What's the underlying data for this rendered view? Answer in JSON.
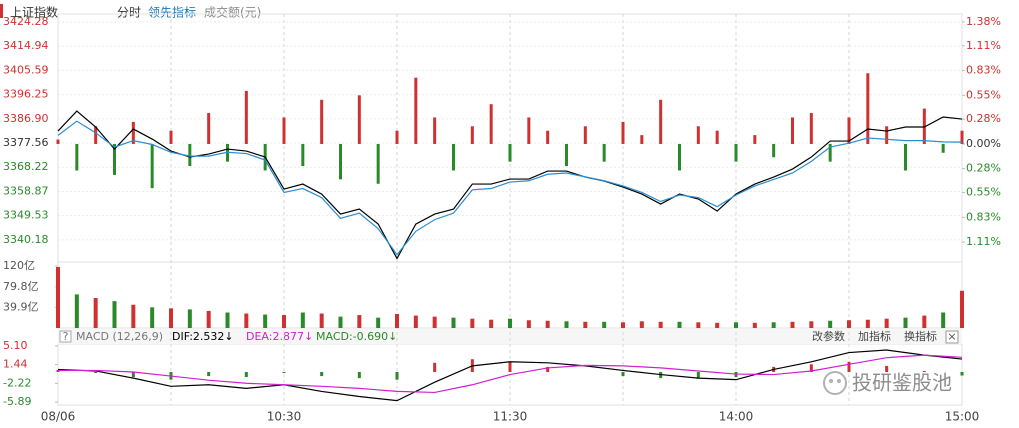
{
  "toolbar": {
    "mode": "分时"
  },
  "watermark": "投研鉴股池",
  "time_axis": {
    "labels": [
      "08/06",
      "10:30",
      "11:30",
      "14:00",
      "15:00"
    ]
  },
  "chart_data": [
    {
      "type": "line",
      "x": [
        "09:30",
        "09:35",
        "09:40",
        "09:45",
        "09:50",
        "09:55",
        "10:00",
        "10:05",
        "10:10",
        "10:15",
        "10:20",
        "10:25",
        "10:30",
        "10:35",
        "10:40",
        "10:45",
        "10:50",
        "10:55",
        "11:00",
        "11:05",
        "11:10",
        "11:15",
        "11:20",
        "11:25",
        "11:30",
        "13:05",
        "13:10",
        "13:15",
        "13:20",
        "13:25",
        "13:30",
        "13:35",
        "13:40",
        "13:45",
        "13:50",
        "13:55",
        "14:00",
        "14:05",
        "14:10",
        "14:15",
        "14:20",
        "14:25",
        "14:30",
        "14:35",
        "14:40",
        "14:45",
        "14:50",
        "14:55",
        "15:00"
      ],
      "ylim": [
        3331.64,
        3427.37
      ],
      "yticks": [
        3424.28,
        3414.94,
        3405.59,
        3396.25,
        {
          "value": 3386.9,
          "label": "3386.90"
        },
        3377.56,
        3368.22,
        3358.87,
        3349.53,
        3340.18
      ],
      "y2lim": [
        -1.335,
        1.47
      ],
      "y2ticks": [
        {
          "value": 1.38,
          "label": "1.38%"
        },
        {
          "value": 1.11,
          "label": "1.11%"
        },
        {
          "value": 0.83,
          "label": "0.83%"
        },
        {
          "value": 0.55,
          "label": "0.55%"
        },
        {
          "value": 0.28,
          "label": "0.28%"
        },
        {
          "value": 0,
          "label": "0.00%"
        },
        {
          "value": -0.28,
          "label": "0.28%"
        },
        {
          "value": -0.55,
          "label": "0.55%"
        },
        {
          "value": -0.83,
          "label": "0.83%"
        },
        {
          "value": -1.11,
          "label": "1.11%"
        }
      ],
      "up_color": "#d03030",
      "down_color": "#2a8a2a",
      "grid": true,
      "series": [
        {
          "name": "上证指数",
          "color": "#000000",
          "values": [
            3382.19,
            3389.91,
            3383.74,
            3375.24,
            3382.96,
            3379.1,
            3374.47,
            3372.16,
            3373.31,
            3375.24,
            3374.47,
            3372.16,
            3359.8,
            3361.73,
            3357.87,
            3350.15,
            3352.08,
            3346.29,
            3333.0,
            3346.29,
            3350.15,
            3352.08,
            3361.73,
            3361.73,
            3363.66,
            3363.66,
            3366.75,
            3366.75,
            3364.44,
            3362.89,
            3360.58,
            3357.87,
            3354.01,
            3357.87,
            3355.95,
            3351.31,
            3357.87,
            3361.73,
            3364.44,
            3367.52,
            3372.16,
            3378.33,
            3378.33,
            3382.96,
            3382.19,
            3383.74,
            3383.74,
            3387.6,
            3386.82
          ]
        },
        {
          "color": "#2a8ed0",
          "values": [
            3380.5,
            3386.0,
            3381.5,
            3376.0,
            3378.5,
            3377.0,
            3374.0,
            3372.5,
            3372.5,
            3374.0,
            3373.5,
            3371.0,
            3358.5,
            3360.0,
            3356.5,
            3348.5,
            3350.5,
            3344.5,
            3334.5,
            3343.5,
            3348.0,
            3350.5,
            3359.5,
            3360.0,
            3362.5,
            3363.0,
            3365.5,
            3366.0,
            3364.5,
            3363.0,
            3361.0,
            3358.5,
            3355.0,
            3357.5,
            3356.5,
            3353.0,
            3357.5,
            3361.0,
            3363.5,
            3366.0,
            3370.5,
            3376.0,
            3377.5,
            3379.5,
            3379.0,
            3378.5,
            3378.5,
            3378.0,
            3377.9
          ]
        },
        {
          "name": "领先指标",
          "type": "bar",
          "axis": "y2",
          "color": "#1a7bb9",
          "values": [
            0.05,
            -0.3,
            0.2,
            -0.35,
            0.25,
            -0.5,
            0.15,
            -0.25,
            0.35,
            -0.2,
            0.6,
            -0.3,
            0.3,
            -0.25,
            0.5,
            -0.4,
            0.55,
            -0.45,
            0.15,
            0.75,
            0.3,
            -0.3,
            0.2,
            0.45,
            -0.2,
            0.3,
            0.15,
            -0.25,
            0.2,
            -0.2,
            0.25,
            0.1,
            0.5,
            -0.3,
            0.2,
            0.15,
            -0.2,
            0.1,
            -0.15,
            0.3,
            0.35,
            -0.2,
            0.3,
            0.8,
            0.2,
            -0.3,
            0.4,
            -0.1,
            0.15
          ]
        }
      ]
    },
    {
      "type": "bar",
      "title": "成交额(元)",
      "ylim": [
        0,
        127.7
      ],
      "yticks": [
        {
          "value": 120,
          "label": "120亿"
        },
        {
          "value": 79.8,
          "label": "79.8亿"
        },
        {
          "value": 39.9,
          "label": "39.9亿"
        }
      ],
      "values": [
        118,
        65,
        58,
        52,
        45,
        40,
        38,
        36,
        33,
        30,
        28,
        26,
        25,
        30,
        28,
        22,
        25,
        20,
        27,
        24,
        22,
        20,
        18,
        16,
        18,
        15,
        14,
        13,
        12,
        12,
        11,
        13,
        12,
        12,
        11,
        10,
        11,
        10,
        11,
        12,
        13,
        14,
        15,
        16,
        18,
        20,
        24,
        30,
        72
      ],
      "colors": [
        "#d03030",
        "#2a8a2a",
        "#d03030",
        "#2a8a2a",
        "#d03030",
        "#2a8a2a",
        "#d03030",
        "#2a8a2a",
        "#d03030",
        "#2a8a2a",
        "#d03030",
        "#2a8a2a",
        "#d03030",
        "#2a8a2a",
        "#d03030",
        "#2a8a2a",
        "#d03030",
        "#2a8a2a",
        "#d03030",
        "#d03030",
        "#d03030",
        "#2a8a2a",
        "#d03030",
        "#d03030",
        "#2a8a2a",
        "#d03030",
        "#d03030",
        "#2a8a2a",
        "#d03030",
        "#2a8a2a",
        "#d03030",
        "#d03030",
        "#d03030",
        "#2a8a2a",
        "#d03030",
        "#d03030",
        "#2a8a2a",
        "#d03030",
        "#2a8a2a",
        "#d03030",
        "#d03030",
        "#2a8a2a",
        "#d03030",
        "#d03030",
        "#d03030",
        "#2a8a2a",
        "#d03030",
        "#2a8a2a",
        "#d03030"
      ]
    },
    {
      "type": "line",
      "title": "MACD (12,26,9)",
      "help_icon": "?",
      "close_icon": "×",
      "buttons": [
        "改参数",
        "加指标",
        "换指标"
      ],
      "x": [
        "09:30",
        "09:40",
        "09:50",
        "10:00",
        "10:10",
        "10:20",
        "10:30",
        "10:40",
        "10:50",
        "11:00",
        "11:10",
        "11:20",
        "11:30",
        "13:10",
        "13:20",
        "13:30",
        "13:40",
        "13:50",
        "14:00",
        "14:10",
        "14:20",
        "14:30",
        "14:40",
        "14:50",
        "15:00"
      ],
      "ylim": [
        -6.46,
        5.48
      ],
      "yticks": [
        {
          "value": 5.1,
          "label": "5.10"
        },
        1.44,
        -2.22,
        -5.89
      ],
      "up_color": "#d03030",
      "down_color": "#2a8a2a",
      "series": [
        {
          "name": "DIF:2.532↓",
          "color": "#000000",
          "values": [
            0.5,
            0.2,
            -1.2,
            -2.8,
            -2.5,
            -3.2,
            -2.5,
            -3.8,
            -4.8,
            -5.6,
            -2.0,
            1.2,
            2.0,
            1.8,
            1.2,
            0.3,
            -0.5,
            -1.2,
            -1.5,
            0.5,
            2.0,
            3.8,
            4.3,
            3.3,
            2.532
          ]
        },
        {
          "name": "DEA:2.877↓",
          "color": "#d020d0",
          "values": [
            0.3,
            0.3,
            0.0,
            -0.8,
            -1.6,
            -2.2,
            -2.5,
            -2.8,
            -3.2,
            -3.8,
            -4.0,
            -2.5,
            -0.5,
            0.8,
            1.3,
            1.2,
            0.8,
            0.2,
            -0.4,
            -0.5,
            0.2,
            1.5,
            2.8,
            3.3,
            2.877
          ]
        },
        {
          "name": "MACD:-0.690↓",
          "type": "bar",
          "color": "#2a8a2a",
          "values": [
            0.4,
            -0.2,
            -1.0,
            -1.5,
            -0.8,
            -1.0,
            -0.2,
            -0.8,
            -1.2,
            -1.5,
            1.8,
            2.5,
            2.0,
            1.0,
            0.0,
            -0.8,
            -1.2,
            -1.3,
            -1.0,
            1.0,
            1.5,
            2.0,
            1.2,
            0.2,
            -0.69
          ]
        }
      ]
    }
  ]
}
